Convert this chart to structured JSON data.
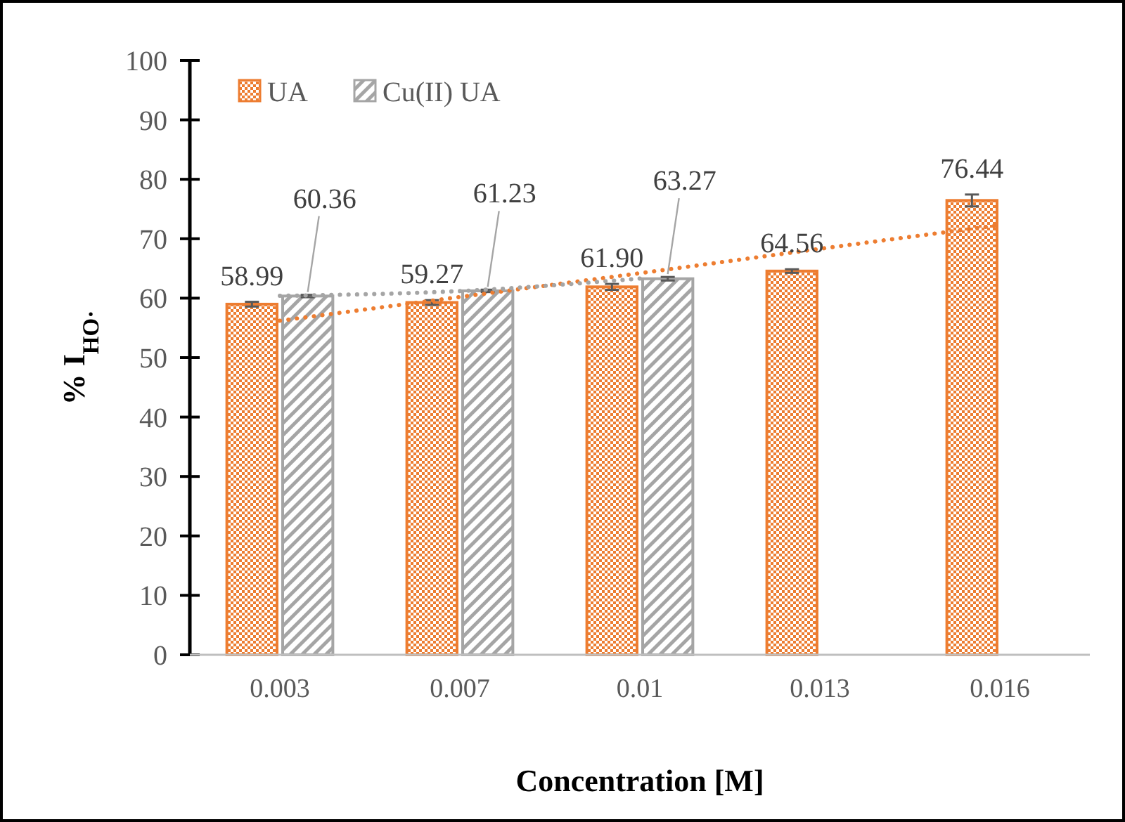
{
  "chart_data": {
    "type": "bar",
    "xlabel": "Concentration [M]",
    "ylabel": "% I$_{HO·}$",
    "categories": [
      "0.003",
      "0.007",
      "0.01",
      "0.013",
      "0.016"
    ],
    "series": [
      {
        "name": "UA",
        "color": "#ed7d31",
        "values": [
          58.99,
          59.27,
          61.9,
          64.56,
          76.44
        ],
        "value_labels": [
          "58.99",
          "59.27",
          "61.90",
          "64.56",
          "76.44"
        ],
        "errors": [
          0.4,
          0.4,
          0.5,
          0.3,
          1.0
        ]
      },
      {
        "name": "Cu(II) UA",
        "color": "#a5a5a5",
        "values": [
          60.36,
          61.23,
          63.27,
          null,
          null
        ],
        "value_labels": [
          "60.36",
          "61.23",
          "63.27",
          null,
          null
        ],
        "errors": [
          0.2,
          0.2,
          0.3,
          null,
          null
        ]
      },
      {
        "type": "line",
        "color": "#ed7d31",
        "line_style": "dotted",
        "x": [
          "0.003",
          "0.007",
          "0.01",
          "0.013",
          "0.016"
        ],
        "values": [
          56.2,
          60.2,
          64.2,
          68.3,
          72.3
        ]
      },
      {
        "type": "line",
        "color": "#a5a5a5",
        "line_style": "dotted",
        "x": [
          "0.003",
          "0.007",
          "0.01"
        ],
        "values": [
          60.4,
          61.2,
          63.3
        ]
      }
    ],
    "ylim": [
      0,
      100
    ],
    "yticks": [
      0,
      10,
      20,
      30,
      40,
      50,
      60,
      70,
      80,
      90,
      100
    ],
    "legend": "top left",
    "grid": false
  }
}
